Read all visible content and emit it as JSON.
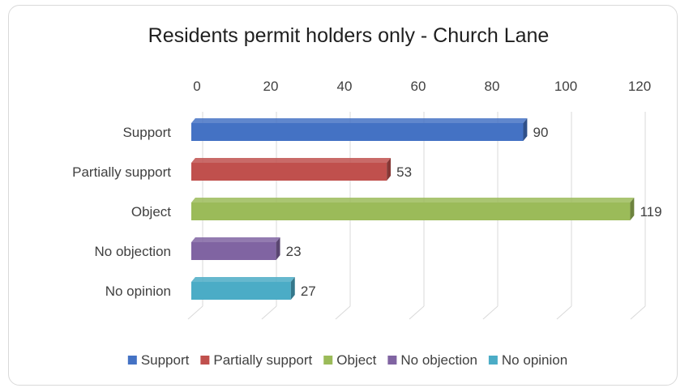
{
  "chart_data": {
    "type": "bar",
    "orientation": "horizontal",
    "style": "3d-clustered",
    "title": "Residents permit holders only - Church Lane",
    "xlabel": "",
    "ylabel": "",
    "xlim": [
      0,
      120
    ],
    "x_ticks": [
      "0",
      "20",
      "40",
      "60",
      "80",
      "100",
      "120"
    ],
    "axis_position": "top",
    "grid": true,
    "legend_position": "bottom",
    "categories": [
      "Support",
      "Partially support",
      "Object",
      "No objection",
      "No opinion"
    ],
    "values": [
      90,
      53,
      119,
      23,
      27
    ],
    "data_labels": [
      "90",
      "53",
      "119",
      "23",
      "27"
    ],
    "colors": [
      "#4472c4",
      "#c0504d",
      "#9bbb59",
      "#8064a2",
      "#4bacc6"
    ],
    "legend": [
      "Support",
      "Partially support",
      "Object",
      "No objection",
      "No opinion"
    ]
  }
}
